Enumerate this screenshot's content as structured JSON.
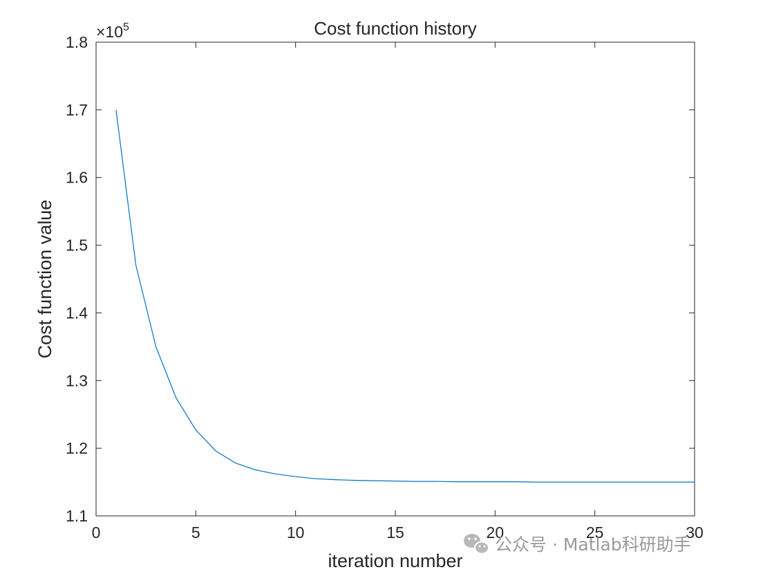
{
  "chart_data": {
    "type": "line",
    "title": "Cost function history",
    "xlabel": "iteration number",
    "ylabel": "Cost function value",
    "y_exponent_label": "×10",
    "y_exponent": "5",
    "xlim": [
      0,
      30
    ],
    "ylim": [
      1.1,
      1.8
    ],
    "x_ticks": [
      0,
      5,
      10,
      15,
      20,
      25,
      30
    ],
    "y_ticks": [
      1.1,
      1.2,
      1.3,
      1.4,
      1.5,
      1.6,
      1.7,
      1.8
    ],
    "x_tick_labels": [
      "0",
      "5",
      "10",
      "15",
      "20",
      "25",
      "30"
    ],
    "y_tick_labels": [
      "1.1",
      "1.2",
      "1.3",
      "1.4",
      "1.5",
      "1.6",
      "1.7",
      "1.8"
    ],
    "grid": false,
    "box": true,
    "line_color": "#0072BD",
    "series": [
      {
        "x": [
          1,
          2,
          3,
          4,
          5,
          6,
          7,
          8,
          9,
          10,
          11,
          12,
          13,
          14,
          15,
          16,
          17,
          18,
          19,
          20,
          21,
          22,
          23,
          24,
          25,
          26,
          27,
          28,
          29,
          30
        ],
        "y": [
          1.7,
          1.47,
          1.35,
          1.275,
          1.227,
          1.196,
          1.178,
          1.168,
          1.162,
          1.158,
          1.155,
          1.1535,
          1.1525,
          1.152,
          1.1515,
          1.151,
          1.151,
          1.1505,
          1.1505,
          1.1505,
          1.1505,
          1.15,
          1.15,
          1.15,
          1.15,
          1.15,
          1.15,
          1.15,
          1.15,
          1.15
        ]
      }
    ]
  },
  "watermark": {
    "text": "公众号 · Matlab科研助手",
    "icon": "wechat-icon"
  }
}
